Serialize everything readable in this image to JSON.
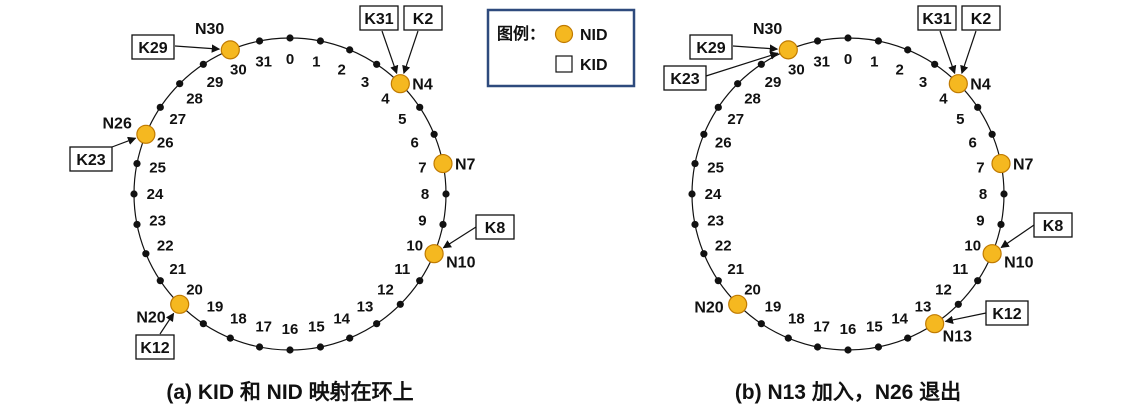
{
  "legend": {
    "title": "图例：",
    "nid_label": "NID",
    "kid_label": "KID",
    "colors": {
      "border": "#2e4a7d",
      "node_fill": "#f5b820",
      "node_stroke": "#c07a00"
    }
  },
  "ring_size": 32,
  "diagrams": [
    {
      "id": "a",
      "caption": "(a) KID 和 NID 映射在环上",
      "positions": [
        "0",
        "1",
        "2",
        "3",
        "4",
        "5",
        "6",
        "7",
        "8",
        "9",
        "10",
        "11",
        "12",
        "13",
        "14",
        "15",
        "16",
        "17",
        "18",
        "19",
        "20",
        "21",
        "22",
        "23",
        "24",
        "25",
        "26",
        "27",
        "28",
        "29",
        "30",
        "31"
      ],
      "nodes": [
        {
          "id": 4,
          "label": "N4"
        },
        {
          "id": 7,
          "label": "N7"
        },
        {
          "id": 10,
          "label": "N10"
        },
        {
          "id": 20,
          "label": "N20"
        },
        {
          "id": 26,
          "label": "N26"
        },
        {
          "id": 30,
          "label": "N30"
        }
      ],
      "keys": [
        {
          "label": "K31",
          "target": 4
        },
        {
          "label": "K2",
          "target": 4
        },
        {
          "label": "K8",
          "target": 10
        },
        {
          "label": "K12",
          "target": 20
        },
        {
          "label": "K23",
          "target": 26
        },
        {
          "label": "K29",
          "target": 30
        }
      ]
    },
    {
      "id": "b",
      "caption": "(b) N13 加入，N26 退出",
      "positions": [
        "0",
        "1",
        "2",
        "3",
        "4",
        "5",
        "6",
        "7",
        "8",
        "9",
        "10",
        "11",
        "12",
        "13",
        "14",
        "15",
        "16",
        "17",
        "18",
        "19",
        "20",
        "21",
        "22",
        "23",
        "24",
        "25",
        "26",
        "27",
        "28",
        "29",
        "30",
        "31"
      ],
      "nodes": [
        {
          "id": 4,
          "label": "N4"
        },
        {
          "id": 7,
          "label": "N7"
        },
        {
          "id": 10,
          "label": "N10"
        },
        {
          "id": 13,
          "label": "N13"
        },
        {
          "id": 20,
          "label": "N20"
        },
        {
          "id": 30,
          "label": "N30"
        }
      ],
      "keys": [
        {
          "label": "K31",
          "target": 4
        },
        {
          "label": "K2",
          "target": 4
        },
        {
          "label": "K8",
          "target": 10
        },
        {
          "label": "K12",
          "target": 13
        },
        {
          "label": "K23",
          "target": 30
        },
        {
          "label": "K29",
          "target": 30
        }
      ]
    }
  ]
}
